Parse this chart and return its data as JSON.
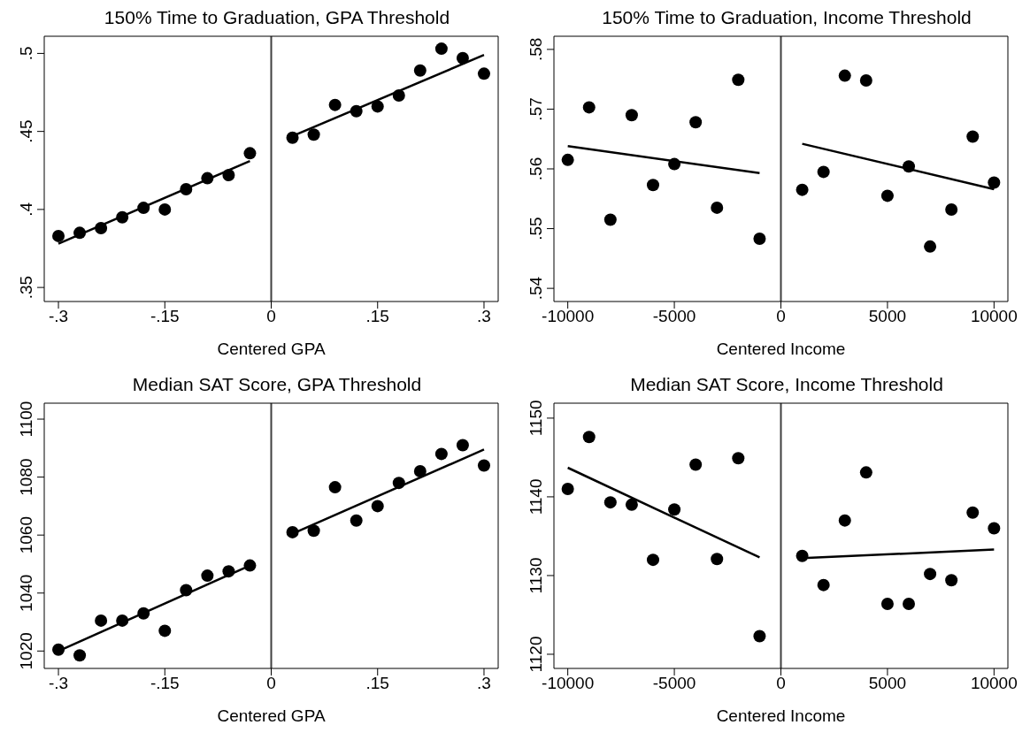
{
  "chart_data": [
    {
      "type": "scatter",
      "title": "150% Time to Graduation, GPA Threshold",
      "xlabel": "Centered GPA",
      "xlim": [
        -0.32,
        0.32
      ],
      "ylim": [
        0.341,
        0.511
      ],
      "xticks": [
        {
          "value": -0.3,
          "label": "-.3"
        },
        {
          "value": -0.15,
          "label": "-.15"
        },
        0,
        {
          "value": 0.15,
          "label": ".15"
        },
        {
          "value": 0.3,
          "label": ".3"
        }
      ],
      "yticks": [
        {
          "value": 0.35,
          "label": ".35"
        },
        {
          "value": 0.4,
          "label": ".4"
        },
        {
          "value": 0.45,
          "label": ".45"
        },
        {
          "value": 0.5,
          "label": ".5"
        }
      ],
      "grid": false,
      "legend": false,
      "marker": "circle",
      "ref_lines": [
        {
          "axis": "x",
          "value": 0,
          "color": "#404040"
        }
      ],
      "series": [
        {
          "type": "scatter",
          "color": "#000000",
          "x": [
            -0.3,
            -0.27,
            -0.24,
            -0.21,
            -0.18,
            -0.15,
            -0.12,
            -0.09,
            -0.06,
            -0.03,
            0.03,
            0.06,
            0.09,
            0.12,
            0.15,
            0.18,
            0.21,
            0.24,
            0.27,
            0.3
          ],
          "values": [
            0.383,
            0.385,
            0.388,
            0.395,
            0.401,
            0.4,
            0.413,
            0.42,
            0.422,
            0.436,
            0.446,
            0.448,
            0.467,
            0.463,
            0.466,
            0.473,
            0.489,
            0.503,
            0.497,
            0.487
          ]
        },
        {
          "type": "line",
          "color": "#000000",
          "marker": "none",
          "x": [
            -0.3,
            -0.03
          ],
          "values": [
            0.378,
            0.431
          ]
        },
        {
          "type": "line",
          "color": "#000000",
          "marker": "none",
          "x": [
            0.03,
            0.3
          ],
          "values": [
            0.447,
            0.499
          ]
        }
      ]
    },
    {
      "type": "scatter",
      "title": "150% Time to Graduation, Income Threshold",
      "xlabel": "Centered Income",
      "xlim": [
        -10650,
        10650
      ],
      "ylim": [
        0.5378,
        0.5822
      ],
      "xticks": [
        -10000,
        -5000,
        0,
        5000,
        10000
      ],
      "yticks": [
        {
          "value": 0.54,
          "label": ".54"
        },
        {
          "value": 0.55,
          "label": ".55"
        },
        {
          "value": 0.56,
          "label": ".56"
        },
        {
          "value": 0.57,
          "label": ".57"
        },
        {
          "value": 0.58,
          "label": ".58"
        }
      ],
      "grid": false,
      "legend": false,
      "marker": "circle",
      "ref_lines": [
        {
          "axis": "x",
          "value": 0,
          "color": "#404040"
        }
      ],
      "series": [
        {
          "type": "scatter",
          "color": "#000000",
          "x": [
            -10000,
            -9000,
            -8000,
            -7000,
            -6000,
            -5000,
            -4000,
            -3000,
            -2000,
            -1000,
            1000,
            2000,
            3000,
            4000,
            5000,
            6000,
            7000,
            8000,
            9000,
            10000
          ],
          "values": [
            0.5615,
            0.5703,
            0.5515,
            0.569,
            0.5573,
            0.5608,
            0.5678,
            0.5535,
            0.5749,
            0.5483,
            0.5565,
            0.5595,
            0.5756,
            0.5748,
            0.5555,
            0.5604,
            0.547,
            0.5532,
            0.5654,
            0.5577
          ]
        },
        {
          "type": "line",
          "color": "#000000",
          "marker": "none",
          "x": [
            -10000,
            -1000
          ],
          "values": [
            0.5638,
            0.5593
          ]
        },
        {
          "type": "line",
          "color": "#000000",
          "marker": "none",
          "x": [
            1000,
            10000
          ],
          "values": [
            0.5642,
            0.5566
          ]
        }
      ]
    },
    {
      "type": "scatter",
      "title": "Median SAT Score, GPA Threshold",
      "xlabel": "Centered GPA",
      "xlim": [
        -0.32,
        0.32
      ],
      "ylim": [
        1014,
        1105.5
      ],
      "xticks": [
        {
          "value": -0.3,
          "label": "-.3"
        },
        {
          "value": -0.15,
          "label": "-.15"
        },
        0,
        {
          "value": 0.15,
          "label": ".15"
        },
        {
          "value": 0.3,
          "label": ".3"
        }
      ],
      "yticks": [
        1020,
        1040,
        1060,
        1080,
        1100
      ],
      "grid": false,
      "legend": false,
      "marker": "circle",
      "ref_lines": [
        {
          "axis": "x",
          "value": 0,
          "color": "#404040"
        }
      ],
      "series": [
        {
          "type": "scatter",
          "color": "#000000",
          "x": [
            -0.3,
            -0.27,
            -0.24,
            -0.21,
            -0.18,
            -0.15,
            -0.12,
            -0.09,
            -0.06,
            -0.03,
            0.03,
            0.06,
            0.09,
            0.12,
            0.15,
            0.18,
            0.21,
            0.24,
            0.27,
            0.3
          ],
          "values": [
            1020.5,
            1018.5,
            1030.5,
            1030.5,
            1033,
            1027,
            1041,
            1046,
            1047.5,
            1049.5,
            1061,
            1061.5,
            1076.5,
            1065,
            1070,
            1078,
            1082,
            1088,
            1091,
            1084
          ]
        },
        {
          "type": "line",
          "color": "#000000",
          "marker": "none",
          "x": [
            -0.3,
            -0.03
          ],
          "values": [
            1020,
            1049.5
          ]
        },
        {
          "type": "line",
          "color": "#000000",
          "marker": "none",
          "x": [
            0.03,
            0.3
          ],
          "values": [
            1060.5,
            1089.5
          ]
        }
      ]
    },
    {
      "type": "scatter",
      "title": "Median SAT Score, Income Threshold",
      "xlabel": "Centered Income",
      "xlim": [
        -10650,
        10650
      ],
      "ylim": [
        1118.2,
        1151.9
      ],
      "xticks": [
        -10000,
        -5000,
        0,
        5000,
        10000
      ],
      "yticks": [
        1120,
        1130,
        1140,
        1150
      ],
      "grid": false,
      "legend": false,
      "marker": "circle",
      "ref_lines": [
        {
          "axis": "x",
          "value": 0,
          "color": "#404040"
        }
      ],
      "series": [
        {
          "type": "scatter",
          "color": "#000000",
          "x": [
            -10000,
            -9000,
            -8000,
            -7000,
            -6000,
            -5000,
            -4000,
            -3000,
            -2000,
            -1000,
            1000,
            2000,
            3000,
            4000,
            5000,
            6000,
            7000,
            8000,
            9000,
            10000
          ],
          "values": [
            1141,
            1147.6,
            1139.3,
            1139,
            1132,
            1138.4,
            1144.1,
            1132.1,
            1144.9,
            1122.3,
            1132.5,
            1128.8,
            1137,
            1143.1,
            1126.4,
            1126.4,
            1130.2,
            1129.4,
            1138,
            1136
          ]
        },
        {
          "type": "line",
          "color": "#000000",
          "marker": "none",
          "x": [
            -10000,
            -1000
          ],
          "values": [
            1143.7,
            1132.3
          ]
        },
        {
          "type": "line",
          "color": "#000000",
          "marker": "none",
          "x": [
            1000,
            10000
          ],
          "values": [
            1132.2,
            1133.3
          ]
        }
      ]
    }
  ]
}
